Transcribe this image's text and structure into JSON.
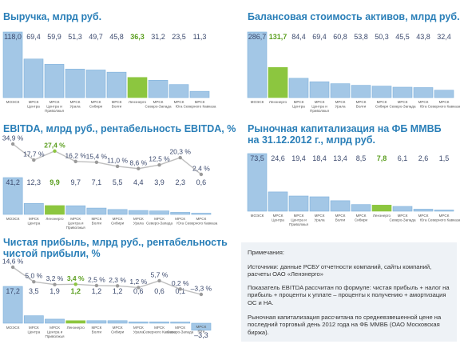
{
  "chart_data": [
    {
      "id": "revenue",
      "type": "bar",
      "title": "Выручка, млрд руб.",
      "categories": [
        "МОЭСК",
        "МРСК Центра",
        "МРСК Центра и Приволжья",
        "МРСК Урала",
        "МРСК Сибири",
        "МРСК Волги",
        "Ленэнерго",
        "МРСК Северо-Запада",
        "МРСК Юга",
        "МРСК Северного Кавказа"
      ],
      "values": [
        118.0,
        69.4,
        59.9,
        51.3,
        49.7,
        45.8,
        36.3,
        31.2,
        23.5,
        11.3
      ],
      "value_labels": [
        "118,0",
        "69,4",
        "59,9",
        "51,3",
        "49,7",
        "45,8",
        "36,3",
        "31,2",
        "23,5",
        "11,3"
      ],
      "highlight_index": 6
    },
    {
      "id": "assets",
      "type": "bar",
      "title": "Балансовая стоимость активов, млрд руб.",
      "categories": [
        "МОЭСК",
        "Ленэнерго",
        "МРСК Центра",
        "МРСК Центра и Приволжья",
        "МРСК Урала",
        "МРСК Волги",
        "МРСК Сибири",
        "МРСК Северо-Запада",
        "МРСК Юга",
        "МРСК Северного Кавказа"
      ],
      "values": [
        286.7,
        131.7,
        84.4,
        69.4,
        60.8,
        53.8,
        50.3,
        45.5,
        43.8,
        32.4
      ],
      "value_labels": [
        "286,7",
        "131,7",
        "84,4",
        "69,4",
        "60,8",
        "53,8",
        "50,3",
        "45,5",
        "43,8",
        "32,4"
      ],
      "highlight_index": 1
    },
    {
      "id": "ebitda",
      "type": "bar",
      "title": "EBITDA, млрд руб., рентабельность EBITDA, %",
      "categories": [
        "МОЭСК",
        "МРСК Центра",
        "Ленэнерго",
        "МРСК Центра и Приволжья",
        "МРСК Волги",
        "МРСК Сибири",
        "МРСК Урала",
        "МРСК Северо-Запада",
        "МРСК Юга",
        "МРСК Северного Кавказа"
      ],
      "values": [
        41.2,
        12.3,
        9.9,
        9.7,
        7.1,
        5.5,
        4.4,
        3.9,
        2.3,
        0.6
      ],
      "value_labels": [
        "41,2",
        "12,3",
        "9,9",
        "9,7",
        "7,1",
        "5,5",
        "4,4",
        "3,9",
        "2,3",
        "0,6"
      ],
      "line_values": [
        34.9,
        17.7,
        27.4,
        16.2,
        15.4,
        11.0,
        8.6,
        12.5,
        20.3,
        2.4
      ],
      "line_labels": [
        "34,9 %",
        "17,7 %",
        "27,4 %",
        "16,2 %",
        "15,4 %",
        "11,0 %",
        "8,6 %",
        "12,5 %",
        "20,3 %",
        "2,4 %"
      ],
      "highlight_index": 2
    },
    {
      "id": "cap",
      "type": "bar",
      "title": "Рыночная капитализация на ФБ ММВБ на 31.12.2012 г., млрд руб.",
      "title_lines": [
        "Рыночная капитализация на ФБ ММВБ",
        "на 31.12.2012 г., млрд руб."
      ],
      "categories": [
        "МОЭСК",
        "МРСК Центра",
        "МРСК Центра и Приволжья",
        "МРСК Урала",
        "МРСК Волги",
        "МРСК Сибири",
        "Ленэнерго",
        "МРСК Северо-Запада",
        "МРСК Юга",
        "МРСК Северного Кавказа"
      ],
      "values": [
        73.5,
        24.6,
        19.4,
        18.4,
        13.4,
        8.5,
        7.8,
        6.1,
        2.6,
        1.5
      ],
      "value_labels": [
        "73,5",
        "24,6",
        "19,4",
        "18,4",
        "13,4",
        "8,5",
        "7,8",
        "6,1",
        "2,6",
        "1,5"
      ],
      "highlight_index": 6
    },
    {
      "id": "profit",
      "type": "bar",
      "title": "Чистая прибыль, млрд руб., рентабельность чистой прибыли, %",
      "title_lines": [
        "Чистая прибыль, млрд руб., рентабельность",
        "чистой прибыли, %"
      ],
      "categories": [
        "МОЭСК",
        "МРСК Центра",
        "МРСК Центра и Приволжья",
        "Ленэнерго",
        "МРСК Волги",
        "МРСК Сибири",
        "МРСК Урала",
        "МРСК Северного Кавказа",
        "МРСК Северо-Запада",
        "МРСК Юга"
      ],
      "values": [
        17.2,
        3.5,
        1.9,
        1.2,
        1.2,
        1.2,
        0.6,
        0.6,
        0.1,
        -3.3
      ],
      "value_labels": [
        "17,2",
        "3,5",
        "1,9",
        "1,2",
        "1,2",
        "1,2",
        "0,6",
        "0,6",
        "0,1",
        "–3,3"
      ],
      "line_values": [
        14.6,
        5.0,
        3.2,
        3.4,
        2.5,
        2.3,
        1.2,
        5.7,
        0.2,
        -3.3
      ],
      "line_labels": [
        "14,6 %",
        "5,0 %",
        "3,2 %",
        "3,4 %",
        "2,5 %",
        "2,3 %",
        "1,2 %",
        "5,7 %",
        "0,2 %",
        "–3,3 %"
      ],
      "highlight_index": 3
    }
  ],
  "notes": {
    "heading": "Примечания:",
    "sources": "Источники: данные РСБУ отчетности компаний, сайты компаний, расчеты ОАО «Ленэнерго»",
    "ebitda_formula": "Показатель EBITDA рассчитан по формуле: чистая прибыль + налог на прибыль + проценты к уплате – проценты к получению + амортизация ОС и НА.",
    "cap_note": "Рыночная капитализация рассчитана по средневзвешенной цене на последний торговый день 2012 года на ФБ ММВБ (ОАО Московская биржа)."
  },
  "colors": {
    "bar": "#a3c7e6",
    "bar_stroke": "#7fb1dc",
    "highlight": "#8cc63f",
    "title": "#2a7fb8",
    "line": "#bfbfbf",
    "label_text": "#3c4a6e",
    "notes_bg": "#eef2f6"
  }
}
